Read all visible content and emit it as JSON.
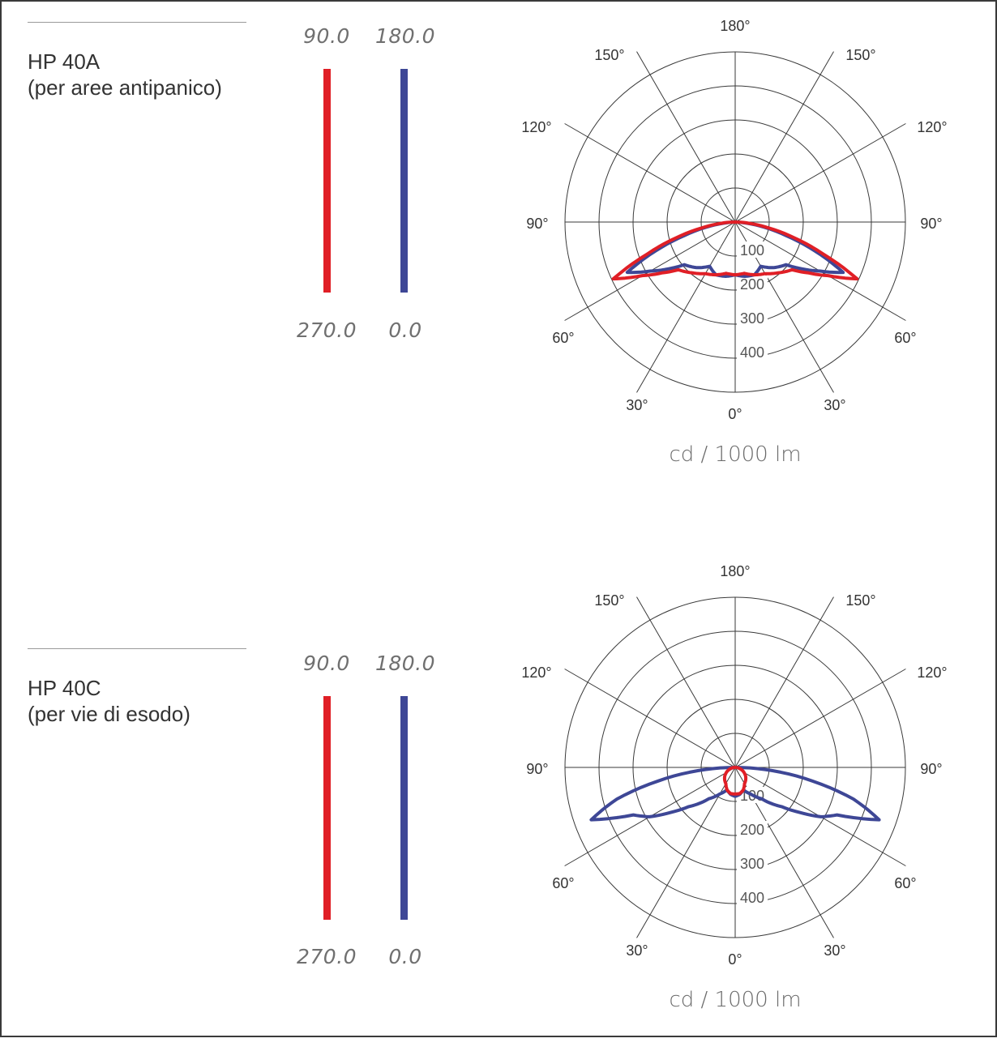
{
  "colors": {
    "c0_180": "#3e4796",
    "c90_270": "#e01f26"
  },
  "chart_data": [
    {
      "type": "polar",
      "title": "HP 40A\n(per aree antipanico)",
      "title_lines": [
        "HP 40A",
        "(per aree antipanico)"
      ],
      "unit_label": "cd / 1000 lm",
      "legend": {
        "c90_top": "90.0",
        "c90_bottom": "270.0",
        "c180_top": "180.0",
        "c0_bottom": "0.0"
      },
      "angle_labels": [
        "180°",
        "150°",
        "150°",
        "120°",
        "120°",
        "90°",
        "90°",
        "60°",
        "60°",
        "30°",
        "30°",
        "0°"
      ],
      "radial_ticks": [
        "100",
        "200",
        "300",
        "400"
      ],
      "rmax": 500,
      "series": [
        {
          "name": "0.0 - 180.0",
          "color": "#3e4796",
          "angles_deg": [
            0,
            10,
            20,
            30,
            40,
            50,
            55,
            60,
            65,
            70,
            75,
            80,
            85,
            90
          ],
          "values_cd": [
            155,
            162,
            165,
            150,
            175,
            195,
            240,
            288,
            350,
            250,
            155,
            85,
            25,
            0
          ]
        },
        {
          "name": "90.0 - 270.0",
          "color": "#e01f26",
          "angles_deg": [
            0,
            10,
            20,
            30,
            40,
            50,
            55,
            60,
            65,
            70,
            75,
            80,
            85,
            90
          ],
          "values_cd": [
            155,
            153,
            165,
            175,
            195,
            218,
            260,
            315,
            395,
            275,
            180,
            100,
            40,
            0
          ]
        }
      ]
    },
    {
      "type": "polar",
      "title": "HP 40C\n(per vie di esodo)",
      "title_lines": [
        "HP 40C",
        "(per vie di esodo)"
      ],
      "unit_label": "cd / 1000 lm",
      "legend": {
        "c90_top": "90.0",
        "c90_bottom": "270.0",
        "c180_top": "180.0",
        "c0_bottom": "0.0"
      },
      "angle_labels": [
        "180°",
        "150°",
        "150°",
        "120°",
        "120°",
        "90°",
        "90°",
        "60°",
        "60°",
        "30°",
        "30°",
        "0°"
      ],
      "radial_ticks": [
        "100",
        "200",
        "300",
        "400"
      ],
      "rmax": 500,
      "series": [
        {
          "name": "0.0 - 180.0",
          "color": "#3e4796",
          "angles_deg": [
            0,
            10,
            20,
            30,
            40,
            50,
            55,
            60,
            65,
            70,
            75,
            80,
            85,
            90
          ],
          "values_cd": [
            85,
            80,
            70,
            90,
            120,
            180,
            230,
            290,
            330,
            450,
            360,
            230,
            110,
            0
          ]
        },
        {
          "name": "90.0 - 270.0",
          "color": "#e01f26",
          "angles_deg": [
            0,
            10,
            20,
            30,
            40,
            50,
            60,
            70,
            80,
            90
          ],
          "values_cd": [
            78,
            78,
            70,
            55,
            48,
            40,
            30,
            20,
            10,
            0
          ]
        }
      ]
    }
  ]
}
